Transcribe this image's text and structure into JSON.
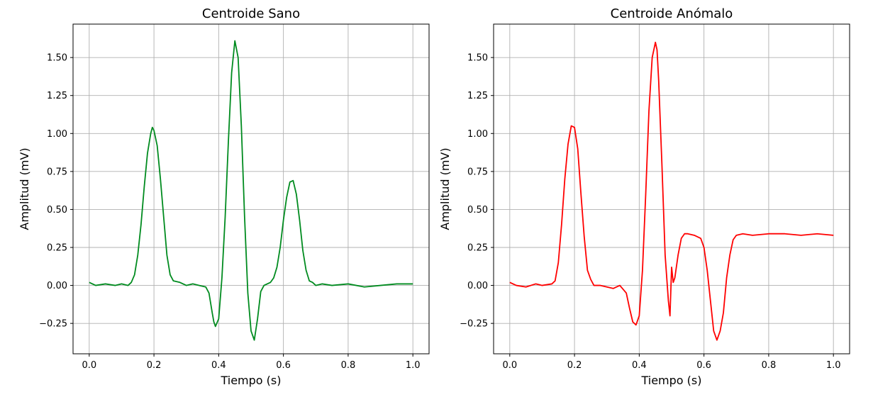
{
  "chart_data": [
    {
      "type": "line",
      "title": "Centroide Sano",
      "xlabel": "Tiempo (s)",
      "ylabel": "Amplitud (mV)",
      "xlim": [
        -0.05,
        1.05
      ],
      "ylim": [
        -0.45,
        1.72
      ],
      "xticks": [
        0.0,
        0.2,
        0.4,
        0.6,
        0.8,
        1.0
      ],
      "xtick_labels": [
        "0.0",
        "0.2",
        "0.4",
        "0.6",
        "0.8",
        "1.0"
      ],
      "yticks": [
        -0.25,
        0.0,
        0.25,
        0.5,
        0.75,
        1.0,
        1.25,
        1.5
      ],
      "ytick_labels": [
        "−0.25",
        "0.00",
        "0.25",
        "0.50",
        "0.75",
        "1.00",
        "1.25",
        "1.50"
      ],
      "grid": true,
      "color": "#008b1f",
      "series": [
        {
          "x": [
            0.0,
            0.02,
            0.05,
            0.08,
            0.1,
            0.12,
            0.13,
            0.14,
            0.15,
            0.16,
            0.17,
            0.18,
            0.19,
            0.195,
            0.2,
            0.21,
            0.22,
            0.23,
            0.24,
            0.25,
            0.26,
            0.28,
            0.3,
            0.32,
            0.34,
            0.36,
            0.37,
            0.38,
            0.385,
            0.39,
            0.4,
            0.41,
            0.42,
            0.43,
            0.44,
            0.45,
            0.46,
            0.47,
            0.48,
            0.49,
            0.5,
            0.51,
            0.52,
            0.53,
            0.54,
            0.55,
            0.56,
            0.57,
            0.58,
            0.59,
            0.6,
            0.61,
            0.62,
            0.63,
            0.64,
            0.65,
            0.66,
            0.67,
            0.68,
            0.69,
            0.7,
            0.72,
            0.75,
            0.8,
            0.85,
            0.9,
            0.95,
            1.0
          ],
          "y": [
            0.02,
            0.0,
            0.01,
            0.0,
            0.01,
            0.0,
            0.02,
            0.07,
            0.2,
            0.4,
            0.65,
            0.87,
            1.0,
            1.04,
            1.02,
            0.92,
            0.7,
            0.45,
            0.2,
            0.07,
            0.03,
            0.02,
            0.0,
            0.01,
            0.0,
            -0.01,
            -0.05,
            -0.18,
            -0.24,
            -0.27,
            -0.22,
            0.05,
            0.45,
            0.95,
            1.4,
            1.61,
            1.5,
            1.05,
            0.45,
            -0.05,
            -0.3,
            -0.36,
            -0.22,
            -0.04,
            0.0,
            0.01,
            0.02,
            0.05,
            0.12,
            0.25,
            0.43,
            0.58,
            0.68,
            0.69,
            0.6,
            0.43,
            0.23,
            0.1,
            0.03,
            0.02,
            0.0,
            0.01,
            0.0,
            0.01,
            -0.01,
            0.0,
            0.01,
            0.01
          ]
        }
      ]
    },
    {
      "type": "line",
      "title": "Centroide Anómalo",
      "xlabel": "Tiempo (s)",
      "ylabel": "Amplitud (mV)",
      "xlim": [
        -0.05,
        1.05
      ],
      "ylim": [
        -0.45,
        1.72
      ],
      "xticks": [
        0.0,
        0.2,
        0.4,
        0.6,
        0.8,
        1.0
      ],
      "xtick_labels": [
        "0.0",
        "0.2",
        "0.4",
        "0.6",
        "0.8",
        "1.0"
      ],
      "yticks": [
        -0.25,
        0.0,
        0.25,
        0.5,
        0.75,
        1.0,
        1.25,
        1.5
      ],
      "ytick_labels": [
        "−0.25",
        "0.00",
        "0.25",
        "0.50",
        "0.75",
        "1.00",
        "1.25",
        "1.50"
      ],
      "grid": true,
      "color": "#ff0000",
      "series": [
        {
          "x": [
            0.0,
            0.02,
            0.05,
            0.08,
            0.1,
            0.13,
            0.14,
            0.15,
            0.16,
            0.17,
            0.18,
            0.19,
            0.2,
            0.21,
            0.22,
            0.23,
            0.24,
            0.25,
            0.26,
            0.28,
            0.3,
            0.32,
            0.34,
            0.36,
            0.37,
            0.38,
            0.39,
            0.4,
            0.41,
            0.42,
            0.43,
            0.44,
            0.45,
            0.455,
            0.46,
            0.47,
            0.48,
            0.49,
            0.495,
            0.5,
            0.505,
            0.51,
            0.52,
            0.53,
            0.54,
            0.55,
            0.57,
            0.59,
            0.6,
            0.61,
            0.62,
            0.63,
            0.64,
            0.65,
            0.66,
            0.67,
            0.68,
            0.69,
            0.7,
            0.72,
            0.75,
            0.8,
            0.85,
            0.9,
            0.95,
            1.0
          ],
          "y": [
            0.02,
            0.0,
            -0.01,
            0.01,
            0.0,
            0.01,
            0.03,
            0.15,
            0.4,
            0.7,
            0.93,
            1.05,
            1.04,
            0.9,
            0.6,
            0.32,
            0.1,
            0.04,
            0.0,
            0.0,
            -0.01,
            -0.02,
            0.0,
            -0.05,
            -0.15,
            -0.24,
            -0.26,
            -0.2,
            0.1,
            0.6,
            1.15,
            1.5,
            1.6,
            1.55,
            1.35,
            0.8,
            0.2,
            -0.1,
            -0.2,
            0.12,
            0.02,
            0.05,
            0.2,
            0.31,
            0.34,
            0.34,
            0.33,
            0.31,
            0.25,
            0.1,
            -0.1,
            -0.3,
            -0.36,
            -0.3,
            -0.18,
            0.05,
            0.2,
            0.3,
            0.33,
            0.34,
            0.33,
            0.34,
            0.34,
            0.33,
            0.34,
            0.33
          ]
        }
      ]
    }
  ]
}
